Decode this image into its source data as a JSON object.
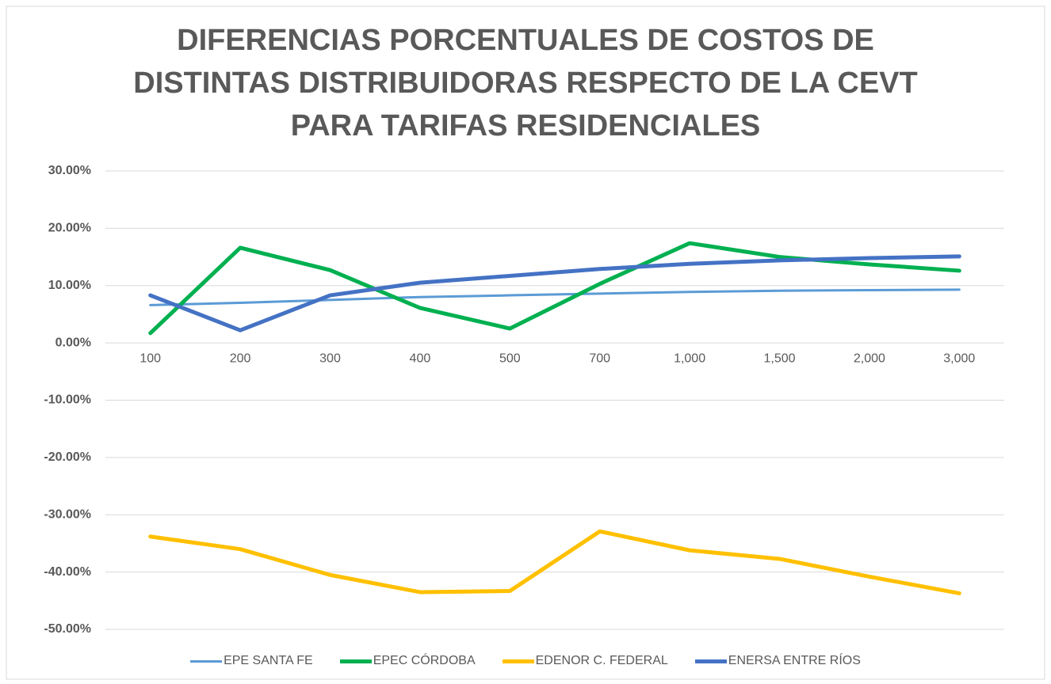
{
  "chart_data": {
    "type": "line",
    "title": "DIFERENCIAS PORCENTUALES DE COSTOS DE DISTINTAS DISTRIBUIDORAS RESPECTO DE LA CEVT PARA TARIFAS RESIDENCIALES",
    "categories": [
      "100",
      "200",
      "300",
      "400",
      "500",
      "700",
      "1,000",
      "1,500",
      "2,000",
      "3,000"
    ],
    "series": [
      {
        "name": "EPE SANTA FE",
        "color": "#5b9bd5",
        "values": [
          6.6,
          7.0,
          7.5,
          8.0,
          8.3,
          8.6,
          8.9,
          9.1,
          9.2,
          9.3
        ]
      },
      {
        "name": "EPEC CÓRDOBA",
        "color": "#00b050",
        "values": [
          1.7,
          16.6,
          12.7,
          6.1,
          2.5,
          10.3,
          17.4,
          15.0,
          13.7,
          12.6
        ]
      },
      {
        "name": "EDENOR C. FEDERAL",
        "color": "#ffc000",
        "values": [
          -33.8,
          -36.0,
          -40.5,
          -43.5,
          -43.3,
          -32.9,
          -36.2,
          -37.7,
          -40.8,
          -43.7
        ]
      },
      {
        "name": "ENERSA ENTRE RÍOS",
        "color": "#4472c4",
        "values": [
          8.3,
          2.2,
          8.3,
          10.5,
          11.7,
          12.9,
          13.8,
          14.4,
          14.8,
          15.1
        ]
      }
    ],
    "ylim": [
      -50,
      30
    ],
    "yticks": [
      {
        "value": -50,
        "label": "-50.00%"
      },
      {
        "value": -40,
        "label": "-40.00%"
      },
      {
        "value": -30,
        "label": "-30.00%"
      },
      {
        "value": -20,
        "label": "-20.00%"
      },
      {
        "value": -10,
        "label": "-10.00%"
      },
      {
        "value": 0,
        "label": "0.00%"
      },
      {
        "value": 10,
        "label": "10.00%"
      },
      {
        "value": 20,
        "label": "20.00%"
      },
      {
        "value": 30,
        "label": "30.00%"
      }
    ],
    "grid": true,
    "legend": "bottom"
  }
}
